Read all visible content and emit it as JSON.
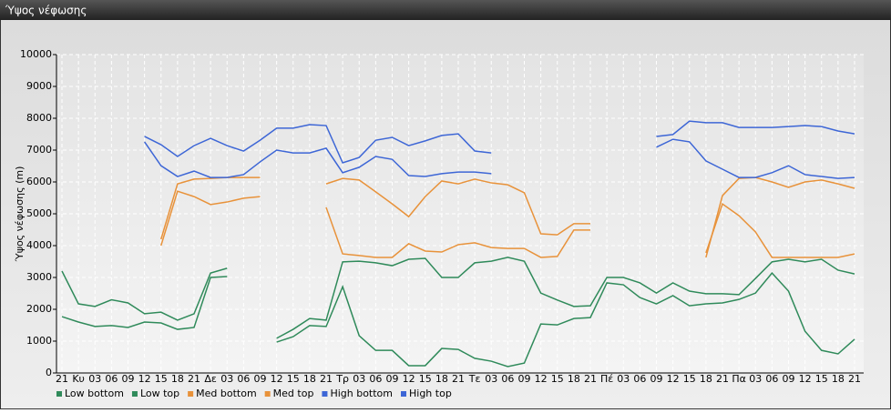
{
  "chart_data": {
    "type": "line",
    "title": "Ύψος νέφωσης",
    "y_label": "Ύψος νέφωσης (m)",
    "categories": [
      "21",
      "Κυ",
      "03",
      "06",
      "09",
      "12",
      "15",
      "18",
      "21",
      "Δε",
      "03",
      "06",
      "09",
      "12",
      "15",
      "18",
      "21",
      "Τρ",
      "03",
      "06",
      "09",
      "12",
      "15",
      "18",
      "21",
      "Τε",
      "03",
      "06",
      "09",
      "12",
      "15",
      "18",
      "21",
      "Πέ",
      "03",
      "06",
      "09",
      "12",
      "15",
      "18",
      "21",
      "Πα",
      "03",
      "06",
      "09",
      "12",
      "15",
      "18",
      "21"
    ],
    "ylim": [
      0,
      10000
    ],
    "yticks": [
      0,
      1000,
      2000,
      3000,
      4000,
      5000,
      6000,
      7000,
      8000,
      9000,
      10000
    ],
    "grid": true,
    "series": [
      {
        "name": "Low bottom",
        "color": "#2f8a5a",
        "values": [
          1770,
          1600,
          1460,
          1490,
          1430,
          1600,
          1570,
          1370,
          1430,
          3000,
          3030,
          null,
          null,
          970,
          1140,
          1490,
          1460,
          2710,
          1170,
          710,
          710,
          230,
          230,
          770,
          740,
          460,
          370,
          200,
          310,
          1540,
          1510,
          1710,
          1740,
          2830,
          2770,
          2370,
          2170,
          2430,
          2110,
          2170,
          2200,
          2310,
          2510,
          3140,
          2570,
          1310,
          710,
          600,
          1060
        ]
      },
      {
        "name": "Low top",
        "color": "#2f8a5a",
        "values": [
          3200,
          2170,
          2090,
          2300,
          2200,
          1860,
          1910,
          1660,
          1860,
          3140,
          3290,
          null,
          null,
          1090,
          1370,
          1710,
          1660,
          3490,
          3510,
          3460,
          3370,
          3570,
          3600,
          3000,
          3000,
          3460,
          3510,
          3630,
          3510,
          2510,
          2290,
          2090,
          2110,
          3000,
          3000,
          2830,
          2510,
          2830,
          2570,
          2490,
          2490,
          2460,
          2970,
          3490,
          3570,
          3490,
          3570,
          3230,
          3110
        ]
      },
      {
        "name": "Med bottom",
        "color": "#e8923a",
        "values": [
          null,
          null,
          null,
          null,
          null,
          null,
          4000,
          5710,
          5540,
          5290,
          5370,
          5490,
          5540,
          null,
          null,
          null,
          5200,
          3740,
          3690,
          3630,
          3630,
          4060,
          3830,
          3800,
          4030,
          4090,
          3940,
          3910,
          3910,
          3630,
          3660,
          4490,
          4490,
          null,
          null,
          null,
          null,
          null,
          null,
          3770,
          5310,
          4940,
          4430,
          3630,
          3630,
          3630,
          3630,
          3630,
          3740
        ]
      },
      {
        "name": "Med top",
        "color": "#e8923a",
        "values": [
          null,
          null,
          null,
          null,
          null,
          null,
          4200,
          5940,
          6090,
          6110,
          6140,
          6140,
          6140,
          null,
          null,
          null,
          5940,
          6110,
          6060,
          5690,
          5310,
          4910,
          5540,
          6030,
          5940,
          6090,
          5970,
          5910,
          5660,
          4370,
          4340,
          4690,
          4690,
          null,
          null,
          null,
          null,
          null,
          null,
          3630,
          5570,
          6110,
          6140,
          6000,
          5830,
          6000,
          6060,
          5940,
          5800
        ]
      },
      {
        "name": "High bottom",
        "color": "#3d66d6",
        "values": [
          null,
          null,
          null,
          null,
          null,
          7260,
          6510,
          6170,
          6340,
          6140,
          6140,
          6230,
          6630,
          7000,
          6910,
          6910,
          7060,
          6290,
          6460,
          6800,
          6710,
          6200,
          6170,
          6260,
          6310,
          6310,
          6260,
          null,
          null,
          null,
          null,
          null,
          null,
          null,
          null,
          null,
          7090,
          7340,
          7260,
          6660,
          6400,
          6140,
          6140,
          6290,
          6510,
          6230,
          6170,
          6110,
          6140
        ]
      },
      {
        "name": "High top",
        "color": "#3d66d6",
        "values": [
          null,
          null,
          null,
          null,
          null,
          7430,
          7170,
          6800,
          7140,
          7370,
          7140,
          6970,
          7310,
          7690,
          7690,
          7800,
          7770,
          6600,
          6770,
          7310,
          7400,
          7140,
          7290,
          7460,
          7510,
          6970,
          6910,
          null,
          null,
          null,
          null,
          null,
          null,
          null,
          null,
          null,
          7430,
          7490,
          7910,
          7860,
          7860,
          7710,
          7710,
          7710,
          7740,
          7770,
          7740,
          7600,
          7510
        ]
      }
    ]
  }
}
